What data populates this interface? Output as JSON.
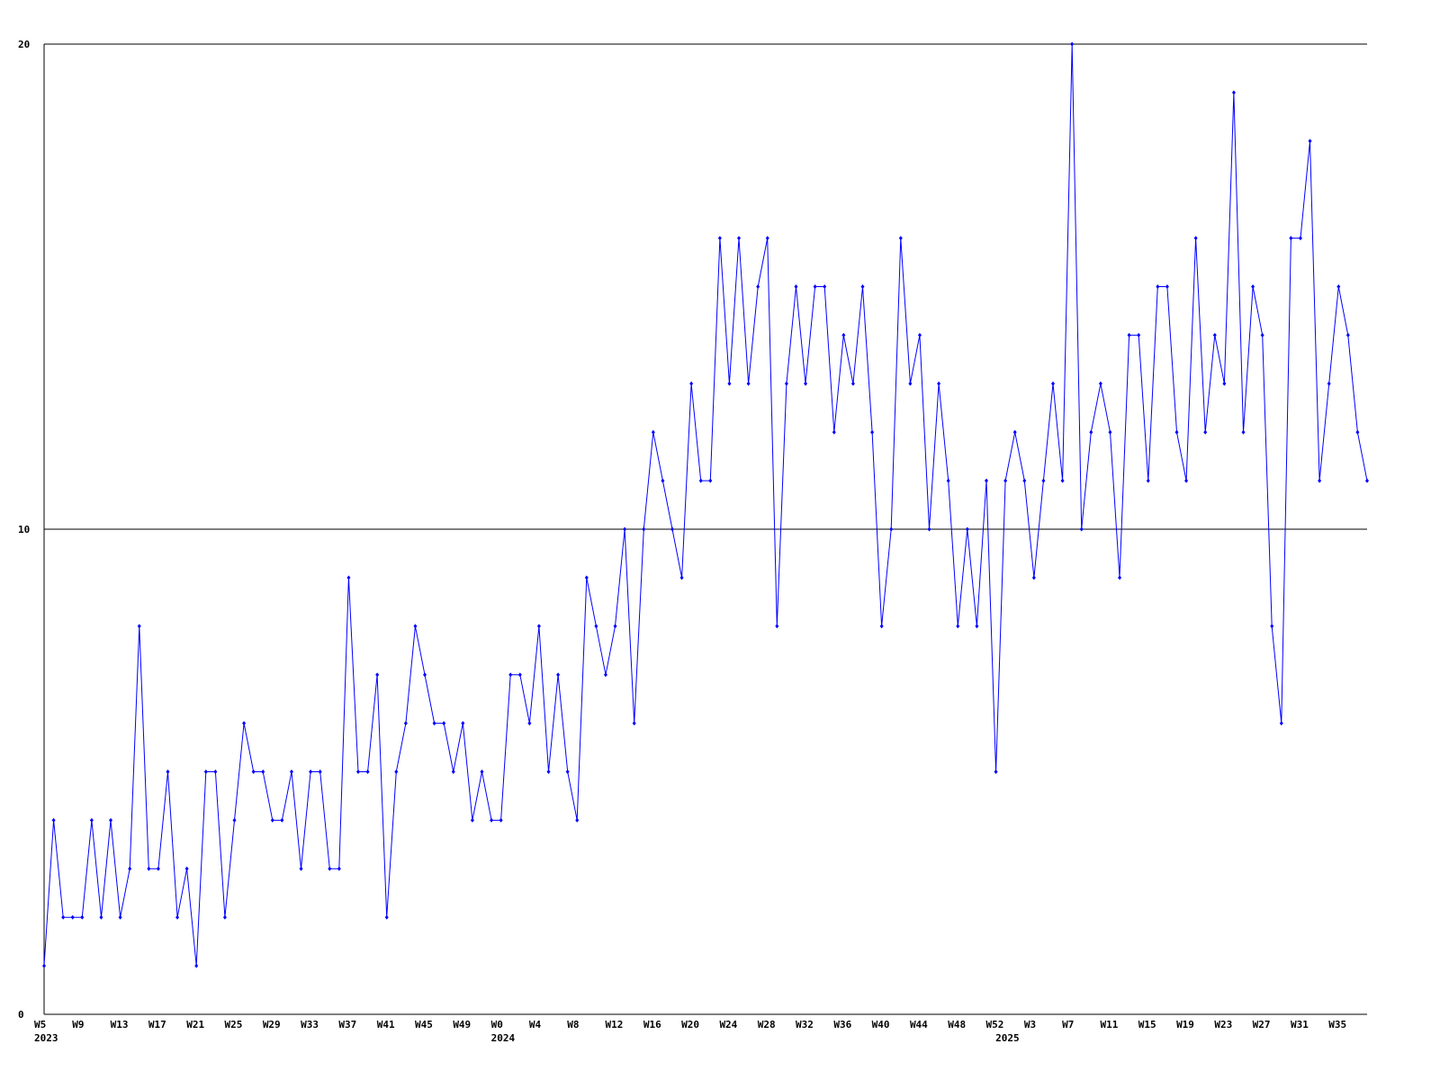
{
  "chart_data": {
    "type": "line",
    "title": "",
    "xlabel": "",
    "ylabel": "",
    "ylim": [
      0,
      20
    ],
    "y_ticks": [
      "0",
      "10",
      "20"
    ],
    "grid": "horizontal lines at 10 and 20",
    "line_color": "#0000ff",
    "x_ticks": [
      "W5",
      "W9",
      "W13",
      "W17",
      "W21",
      "W25",
      "W29",
      "W33",
      "W37",
      "W41",
      "W45",
      "W49",
      "W0",
      "W4",
      "W8",
      "W12",
      "W16",
      "W20",
      "W24",
      "W28",
      "W32",
      "W36",
      "W40",
      "W44",
      "W48",
      "W52",
      "W3",
      "W7",
      "W11",
      "W15",
      "W19",
      "W23",
      "W27",
      "W31",
      "W35"
    ],
    "year_labels": [
      "2023",
      "2024",
      "2025"
    ],
    "series": [
      {
        "values": [
          1,
          4,
          2,
          2,
          2,
          4,
          2,
          4,
          2,
          3,
          8,
          3,
          3,
          5,
          2,
          3,
          1,
          5,
          5,
          2,
          4,
          6,
          5,
          5,
          4,
          4,
          5,
          3,
          5,
          5,
          3,
          3,
          9,
          5,
          5,
          7,
          2,
          5,
          6,
          8,
          7,
          6,
          6,
          5,
          6,
          4,
          5,
          4,
          4,
          7,
          7,
          6,
          8,
          5,
          7,
          5,
          4,
          9,
          8,
          7,
          8,
          10,
          6,
          10,
          12,
          11,
          10,
          9,
          13,
          11,
          11,
          16,
          13,
          16,
          13,
          15,
          16,
          8,
          13,
          15,
          13,
          15,
          15,
          12,
          14,
          13,
          15,
          12,
          8,
          10,
          16,
          13,
          14,
          10,
          13,
          11,
          8,
          10,
          8,
          11,
          5,
          11,
          12,
          11,
          9,
          11,
          13,
          11,
          20,
          10,
          12,
          13,
          12,
          9,
          14,
          14,
          11,
          15,
          15,
          12,
          11,
          16,
          12,
          14,
          13,
          19,
          12,
          15,
          14,
          8,
          6,
          16,
          16,
          18,
          11,
          13,
          15,
          14,
          12,
          11
        ]
      }
    ]
  }
}
